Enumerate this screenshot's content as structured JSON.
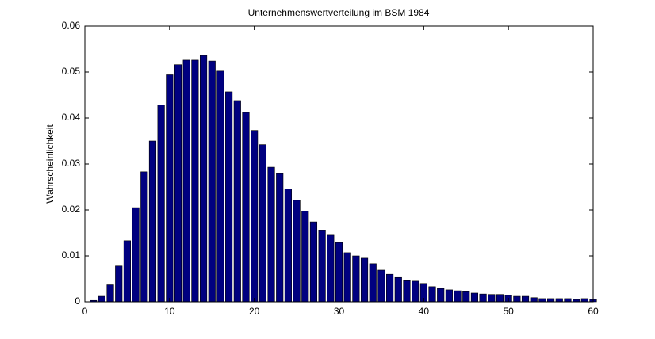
{
  "chart_data": {
    "type": "bar",
    "title": "Unternehmenswertverteilung im BSM 1984",
    "ylabel": "Wahrscheinlichkeit",
    "x": [
      1,
      2,
      3,
      4,
      5,
      6,
      7,
      8,
      9,
      10,
      11,
      12,
      13,
      14,
      15,
      16,
      17,
      18,
      19,
      20,
      21,
      22,
      23,
      24,
      25,
      26,
      27,
      28,
      29,
      30,
      31,
      32,
      33,
      34,
      35,
      36,
      37,
      38,
      39,
      40,
      41,
      42,
      43,
      44,
      45,
      46,
      47,
      48,
      49,
      50,
      51,
      52,
      53,
      54,
      55,
      56,
      57,
      58,
      59,
      60
    ],
    "values": [
      0.0003,
      0.0012,
      0.0037,
      0.0078,
      0.0133,
      0.0205,
      0.0283,
      0.035,
      0.0428,
      0.0494,
      0.0516,
      0.0526,
      0.0526,
      0.0536,
      0.0524,
      0.0502,
      0.0457,
      0.0438,
      0.0412,
      0.0373,
      0.0342,
      0.0293,
      0.0279,
      0.0246,
      0.0221,
      0.0197,
      0.0174,
      0.0155,
      0.0145,
      0.0129,
      0.0107,
      0.01,
      0.0095,
      0.0083,
      0.0069,
      0.006,
      0.0053,
      0.0046,
      0.0045,
      0.004,
      0.0033,
      0.0029,
      0.0026,
      0.0024,
      0.0022,
      0.0019,
      0.0017,
      0.0016,
      0.0016,
      0.0014,
      0.0012,
      0.0012,
      0.0009,
      0.0007,
      0.0007,
      0.0007,
      0.0007,
      0.0005,
      0.0007,
      0.0005
    ],
    "color": "#000080",
    "xlim": [
      0,
      60
    ],
    "xticks": [
      0,
      10,
      20,
      30,
      40,
      50,
      60
    ],
    "ylim": [
      0,
      0.06
    ],
    "yticks": [
      0,
      0.01,
      0.02,
      0.03,
      0.04,
      0.05,
      0.06
    ],
    "grid": false
  }
}
